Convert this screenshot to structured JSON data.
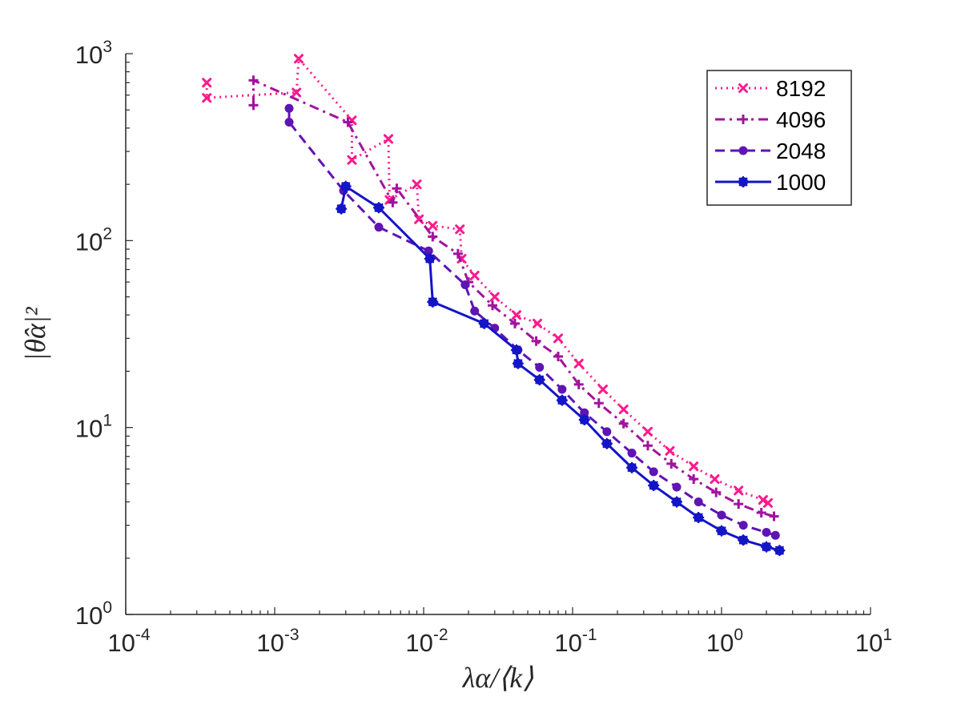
{
  "chart_data": {
    "type": "line",
    "scale": {
      "x": "log",
      "y": "log"
    },
    "xlabel": "λα/⟨k⟩",
    "ylabel": "|θ̂α|²",
    "xlim": [
      0.0001,
      10
    ],
    "ylim": [
      1,
      1000
    ],
    "x_ticks": [
      {
        "base": "10",
        "exp": "-4",
        "value": 0.0001
      },
      {
        "base": "10",
        "exp": "-3",
        "value": 0.001
      },
      {
        "base": "10",
        "exp": "-2",
        "value": 0.01
      },
      {
        "base": "10",
        "exp": "-1",
        "value": 0.1
      },
      {
        "base": "10",
        "exp": "0",
        "value": 1
      },
      {
        "base": "10",
        "exp": "1",
        "value": 10
      }
    ],
    "y_ticks": [
      {
        "base": "10",
        "exp": "0",
        "value": 1
      },
      {
        "base": "10",
        "exp": "1",
        "value": 10
      },
      {
        "base": "10",
        "exp": "2",
        "value": 100
      },
      {
        "base": "10",
        "exp": "3",
        "value": 1000
      }
    ],
    "legend_position": "top-right",
    "series": [
      {
        "name": "8192",
        "color": "#ff1a8c",
        "dash": "dotted",
        "marker": "x",
        "points": [
          [
            0.00035,
            700
          ],
          [
            0.00035,
            580
          ],
          [
            0.0014,
            620
          ],
          [
            0.00145,
            940
          ],
          [
            0.0033,
            440
          ],
          [
            0.0033,
            270
          ],
          [
            0.0058,
            350
          ],
          [
            0.0059,
            165
          ],
          [
            0.009,
            200
          ],
          [
            0.0093,
            130
          ],
          [
            0.0115,
            120
          ],
          [
            0.0175,
            115
          ],
          [
            0.018,
            80
          ],
          [
            0.022,
            65
          ],
          [
            0.03,
            50
          ],
          [
            0.042,
            40
          ],
          [
            0.058,
            36
          ],
          [
            0.08,
            30
          ],
          [
            0.11,
            22
          ],
          [
            0.16,
            16
          ],
          [
            0.22,
            12.5
          ],
          [
            0.32,
            9.5
          ],
          [
            0.45,
            7.5
          ],
          [
            0.65,
            6.2
          ],
          [
            0.9,
            5.3
          ],
          [
            1.3,
            4.6
          ],
          [
            1.9,
            4.1
          ],
          [
            2.05,
            3.95
          ]
        ]
      },
      {
        "name": "4096",
        "color": "#a1139e",
        "dash": "dashdot",
        "marker": "+",
        "points": [
          [
            0.00072,
            530
          ],
          [
            0.00072,
            720
          ],
          [
            0.0031,
            430
          ],
          [
            0.0062,
            160
          ],
          [
            0.0066,
            190
          ],
          [
            0.0115,
            105
          ],
          [
            0.017,
            85
          ],
          [
            0.02,
            60
          ],
          [
            0.029,
            45
          ],
          [
            0.041,
            36
          ],
          [
            0.057,
            29
          ],
          [
            0.08,
            24
          ],
          [
            0.11,
            17
          ],
          [
            0.15,
            13.5
          ],
          [
            0.22,
            10.5
          ],
          [
            0.32,
            8
          ],
          [
            0.46,
            6.4
          ],
          [
            0.65,
            5.3
          ],
          [
            0.92,
            4.5
          ],
          [
            1.3,
            3.9
          ],
          [
            1.85,
            3.5
          ],
          [
            2.25,
            3.35
          ]
        ]
      },
      {
        "name": "2048",
        "color": "#5f14b4",
        "dash": "dashed",
        "marker": "dot",
        "points": [
          [
            0.00125,
            510
          ],
          [
            0.00125,
            430
          ],
          [
            0.0029,
            185
          ],
          [
            0.005,
            118
          ],
          [
            0.0108,
            88
          ],
          [
            0.019,
            58
          ],
          [
            0.022,
            42
          ],
          [
            0.03,
            34
          ],
          [
            0.043,
            26
          ],
          [
            0.06,
            21
          ],
          [
            0.085,
            16
          ],
          [
            0.12,
            12
          ],
          [
            0.17,
            9.5
          ],
          [
            0.25,
            7.3
          ],
          [
            0.35,
            5.8
          ],
          [
            0.5,
            4.8
          ],
          [
            0.7,
            4
          ],
          [
            1,
            3.4
          ],
          [
            1.4,
            3
          ],
          [
            2,
            2.75
          ],
          [
            2.3,
            2.65
          ]
        ]
      },
      {
        "name": "1000",
        "color": "#1414c8",
        "dash": "solid",
        "marker": "star",
        "points": [
          [
            0.0028,
            148
          ],
          [
            0.003,
            195
          ],
          [
            0.005,
            150
          ],
          [
            0.011,
            80
          ],
          [
            0.0115,
            47
          ],
          [
            0.0255,
            36
          ],
          [
            0.042,
            26
          ],
          [
            0.043,
            22
          ],
          [
            0.06,
            18
          ],
          [
            0.085,
            14
          ],
          [
            0.12,
            11
          ],
          [
            0.17,
            8.2
          ],
          [
            0.25,
            6.1
          ],
          [
            0.35,
            4.9
          ],
          [
            0.5,
            4
          ],
          [
            0.7,
            3.3
          ],
          [
            1,
            2.8
          ],
          [
            1.4,
            2.5
          ],
          [
            2,
            2.3
          ],
          [
            2.45,
            2.2
          ]
        ]
      }
    ]
  }
}
